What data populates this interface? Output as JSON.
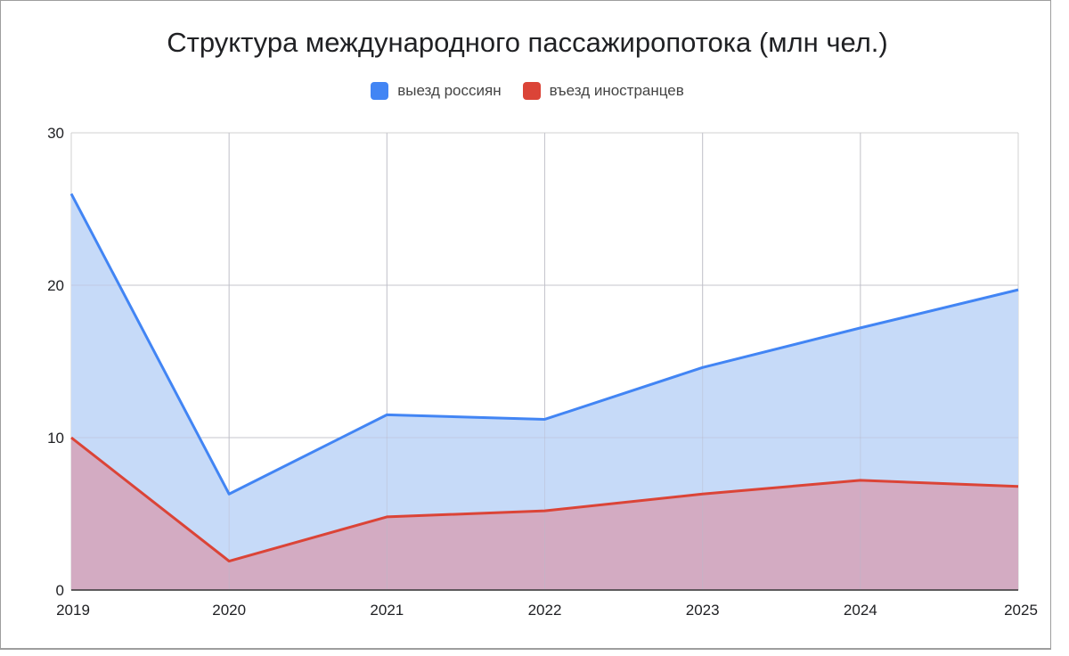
{
  "chart_data": {
    "type": "area",
    "title": "Структура международного пассажиропотока (млн чел.)",
    "x": [
      "2019",
      "2020",
      "2021",
      "2022",
      "2023",
      "2024",
      "2025"
    ],
    "series": [
      {
        "name": "выезд россиян",
        "values": [
          26.0,
          6.3,
          11.5,
          11.2,
          14.6,
          17.2,
          19.7
        ],
        "color": "#4285f4",
        "fill": "#c6daf8"
      },
      {
        "name": "въезд иностранцев",
        "values": [
          10.0,
          1.9,
          4.8,
          5.2,
          6.3,
          7.2,
          6.8
        ],
        "color": "#db4437",
        "fill": "#d3abc2"
      }
    ],
    "ylim": [
      0,
      30
    ],
    "yticks": [
      0,
      10,
      20,
      30
    ],
    "grid": true,
    "legend": "top"
  }
}
